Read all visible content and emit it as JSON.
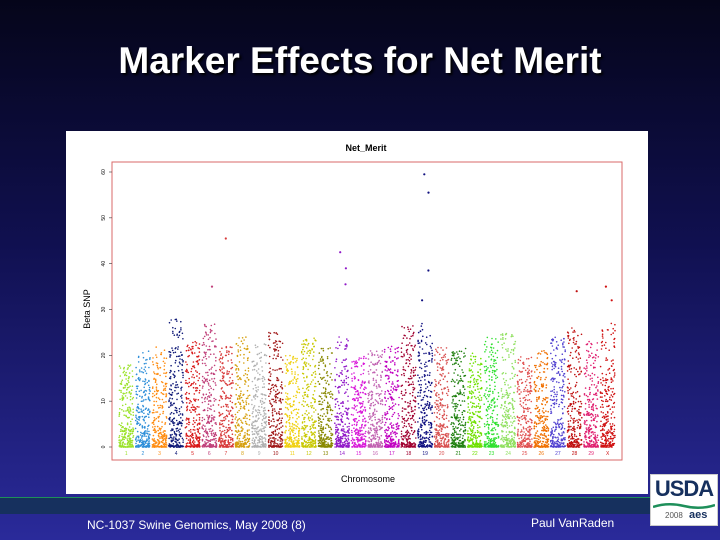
{
  "slide": {
    "title": "Marker Effects for Net Merit",
    "footer_left": "NC-1037 Swine Genomics, May 2008 (8)",
    "footer_right": "Paul VanRaden",
    "logo_text": "USDA",
    "logo_year": "2008",
    "logo_mark": "aes"
  },
  "colors": {
    "accent_navy": "#16305e",
    "plot_frame": "#d96a6a"
  },
  "chart_data": {
    "type": "scatter",
    "title": "Net_Merit",
    "xlabel": "Chromosome",
    "ylabel": "Beta SNP",
    "ylim": [
      0,
      60
    ],
    "yticks": [
      "0",
      "10",
      "20",
      "30",
      "40",
      "50",
      "60"
    ],
    "grid": false,
    "chromosomes": [
      "1",
      "2",
      "3",
      "4",
      "5",
      "6",
      "7",
      "8",
      "9",
      "10",
      "11",
      "12",
      "13",
      "14",
      "15",
      "16",
      "17",
      "18",
      "19",
      "20",
      "21",
      "22",
      "23",
      "24",
      "25",
      "26",
      "27",
      "28",
      "29",
      "X"
    ],
    "palette": [
      "#9be22a",
      "#2f8fd9",
      "#ff8c10",
      "#101a78",
      "#d81818",
      "#c0407a",
      "#d83a3a",
      "#d6a010",
      "#b0b0b0",
      "#a01818",
      "#f0d010",
      "#c8c800",
      "#888800",
      "#9018c8",
      "#d818d8",
      "#c060b0",
      "#c000c0",
      "#a00030",
      "#101080",
      "#d85050",
      "#208010",
      "#70e000",
      "#30e030",
      "#90e060",
      "#e05050",
      "#f07000",
      "#5040d0",
      "#c01010",
      "#e02070",
      "#d01010"
    ],
    "base_height": [
      18,
      21,
      22,
      28,
      23,
      27,
      22,
      24,
      23,
      25,
      20,
      24,
      22,
      24,
      20,
      21,
      22,
      27,
      28,
      22,
      22,
      21,
      24,
      25,
      20,
      21,
      24,
      26,
      23,
      27
    ],
    "outliers": [
      {
        "chromosome": "7",
        "y": 45.5
      },
      {
        "chromosome": "14",
        "y": 42.5
      },
      {
        "chromosome": "14",
        "y": 39
      },
      {
        "chromosome": "14",
        "y": 35.5
      },
      {
        "chromosome": "19",
        "y": 59.5
      },
      {
        "chromosome": "19",
        "y": 55.5
      },
      {
        "chromosome": "19",
        "y": 38.5
      },
      {
        "chromosome": "19",
        "y": 32
      },
      {
        "chromosome": "6",
        "y": 35
      },
      {
        "chromosome": "28",
        "y": 34
      },
      {
        "chromosome": "X",
        "y": 35
      },
      {
        "chromosome": "X",
        "y": 32
      }
    ]
  }
}
